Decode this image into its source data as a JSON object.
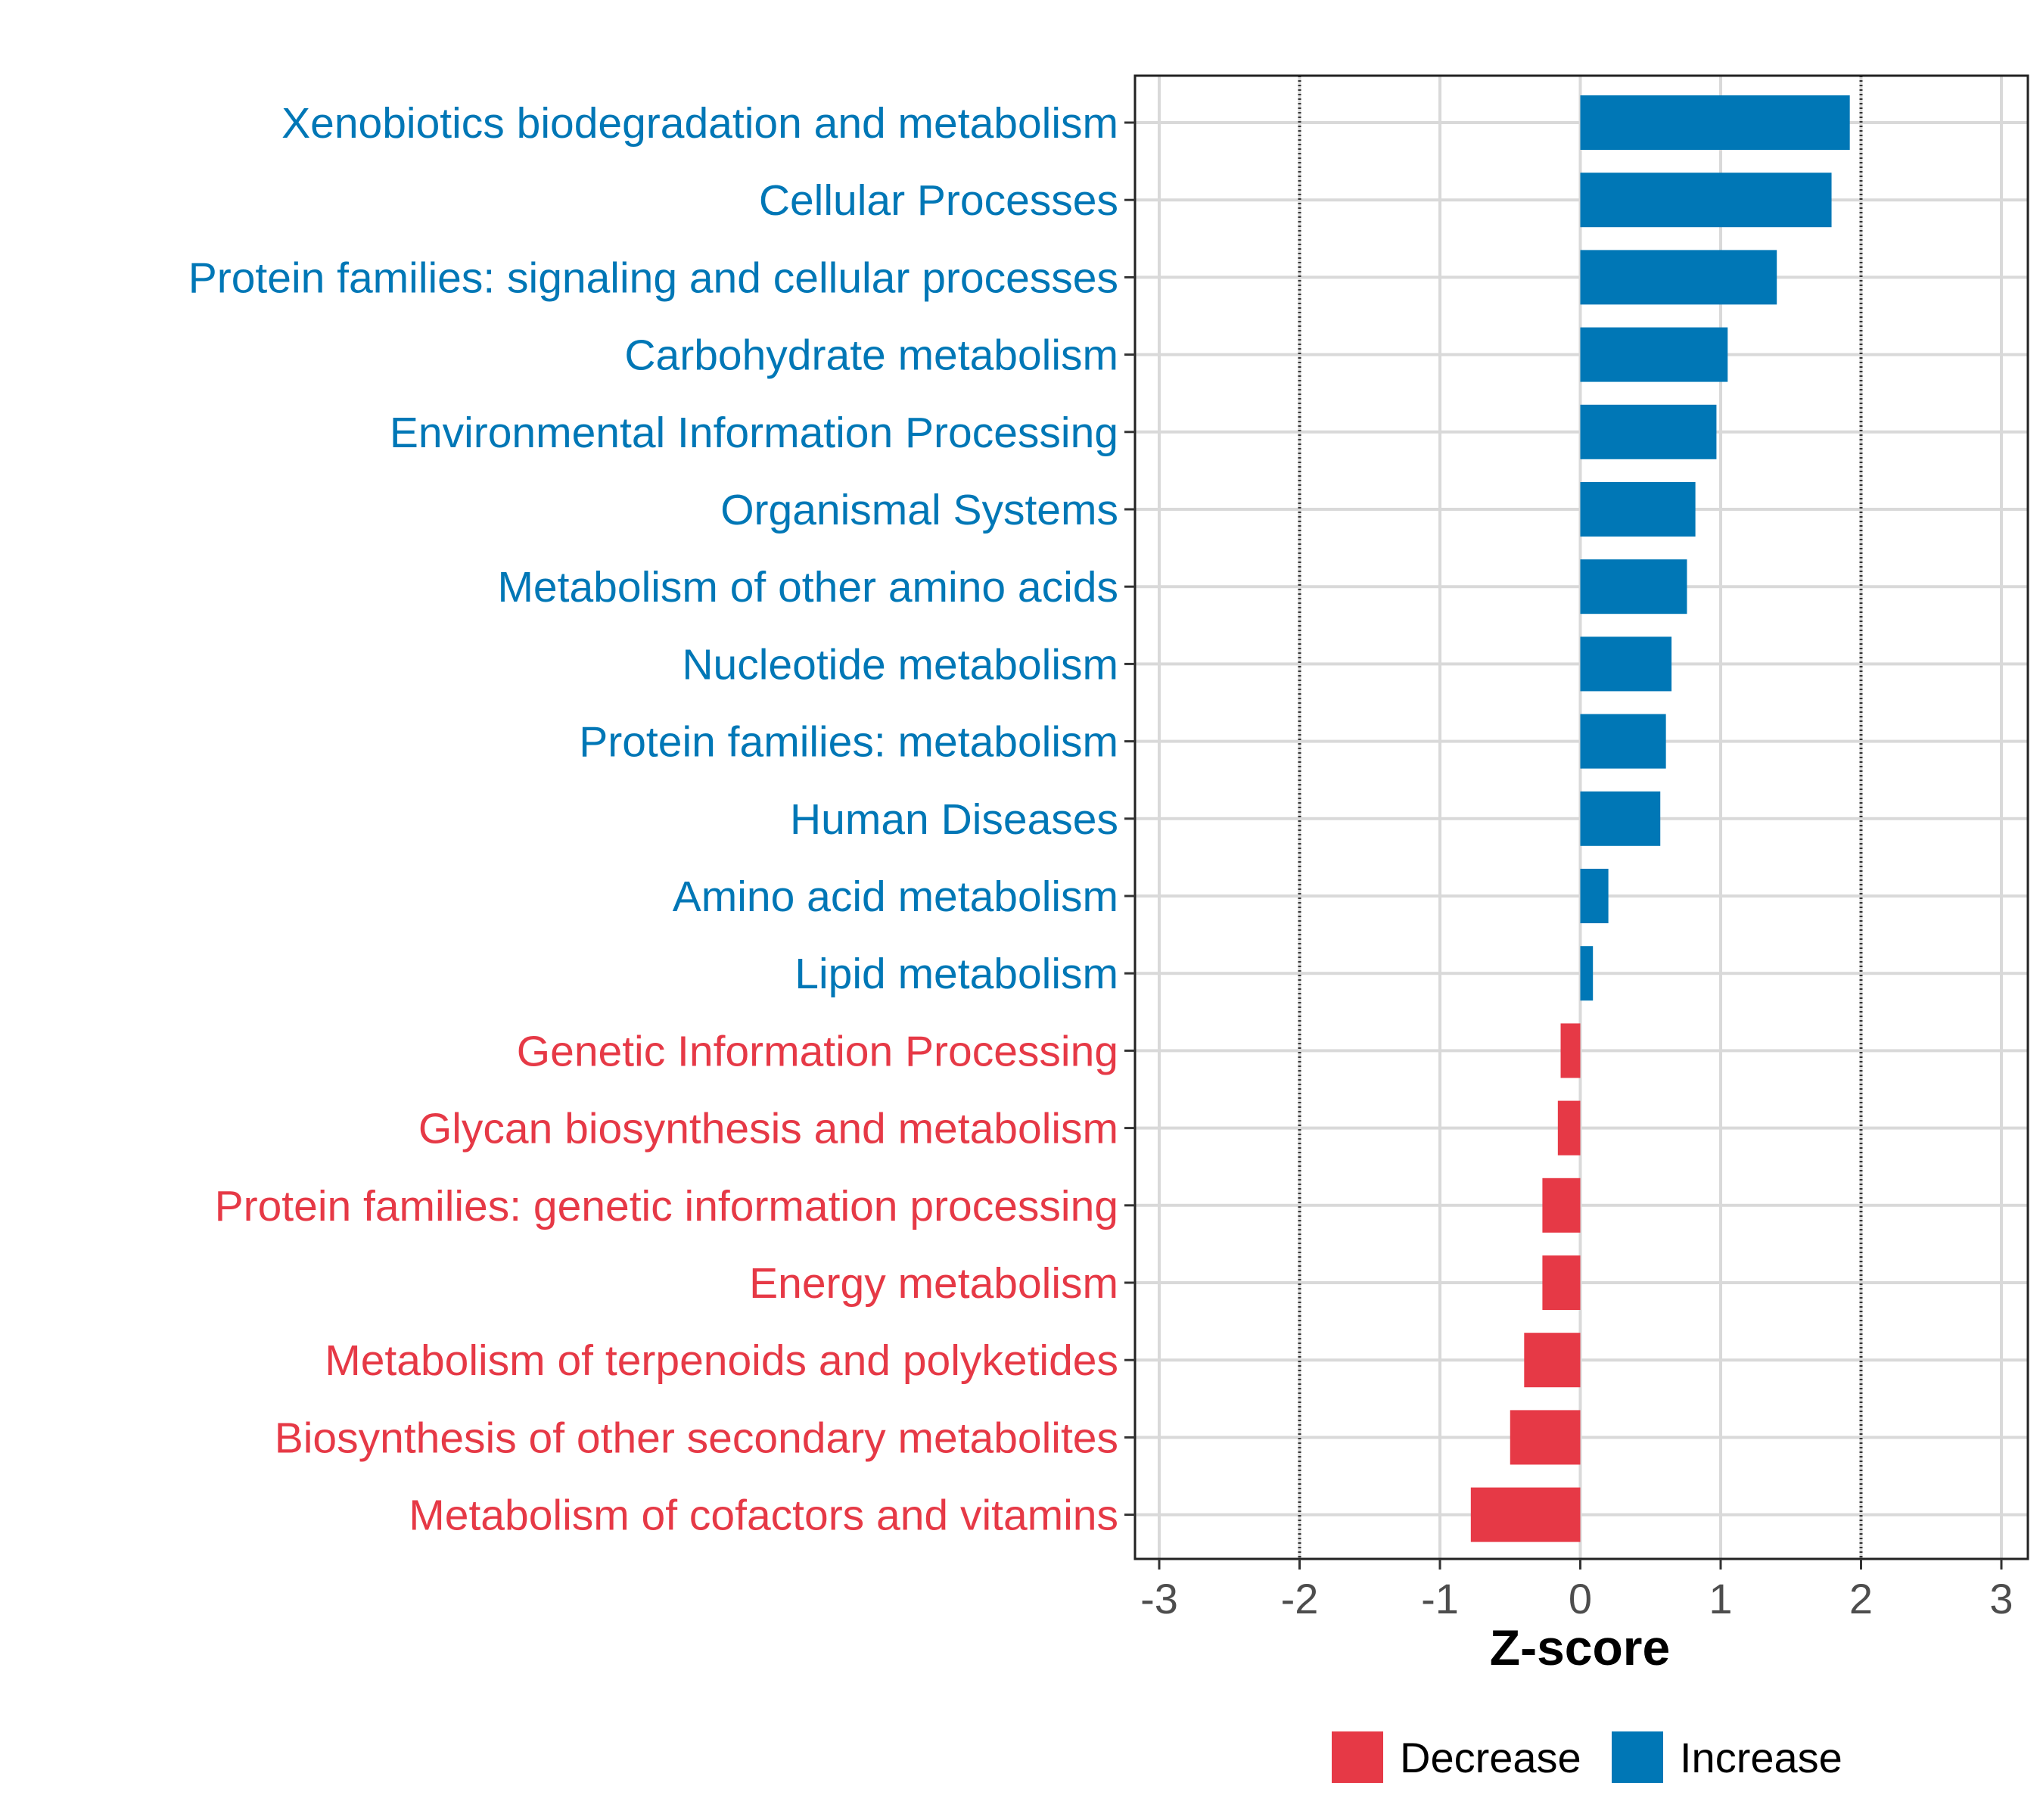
{
  "chart_data": {
    "type": "bar",
    "orientation": "horizontal",
    "title": "",
    "xlabel": "Z-score",
    "ylabel": "",
    "xlim": [
      -3.2,
      3.2
    ],
    "x_ticks": [
      -3,
      -2,
      -1,
      0,
      1,
      2,
      3
    ],
    "x_tick_labels": [
      "-3",
      "-2",
      "-1",
      "0",
      "1",
      "2",
      "3"
    ],
    "reference_lines": [
      -2,
      2
    ],
    "grid": true,
    "colors": {
      "Decrease": "#e63946",
      "Increase": "#0077b6"
    },
    "categories": [
      "Xenobiotics biodegradation and metabolism",
      "Cellular Processes",
      "Protein families: signaling and cellular processes",
      "Carbohydrate metabolism",
      "Environmental Information Processing",
      "Organismal Systems",
      "Metabolism of other amino acids",
      "Nucleotide metabolism",
      "Protein families: metabolism",
      "Human Diseases",
      "Amino acid metabolism",
      "Lipid metabolism",
      "Genetic Information Processing",
      "Glycan biosynthesis and metabolism",
      "Protein families: genetic information processing",
      "Energy metabolism",
      "Metabolism of terpenoids and polyketides",
      "Biosynthesis of other secondary metabolites",
      "Metabolism of cofactors and vitamins"
    ],
    "values": [
      1.92,
      1.79,
      1.4,
      1.05,
      0.97,
      0.82,
      0.76,
      0.65,
      0.61,
      0.57,
      0.2,
      0.09,
      -0.14,
      -0.16,
      -0.27,
      -0.27,
      -0.4,
      -0.5,
      -0.78
    ],
    "groups": [
      "Increase",
      "Increase",
      "Increase",
      "Increase",
      "Increase",
      "Increase",
      "Increase",
      "Increase",
      "Increase",
      "Increase",
      "Increase",
      "Increase",
      "Decrease",
      "Decrease",
      "Decrease",
      "Decrease",
      "Decrease",
      "Decrease",
      "Decrease"
    ],
    "legend": {
      "position": "bottom",
      "entries": [
        {
          "label": "Decrease",
          "color": "#e63946"
        },
        {
          "label": "Increase",
          "color": "#0077b6"
        }
      ]
    }
  }
}
